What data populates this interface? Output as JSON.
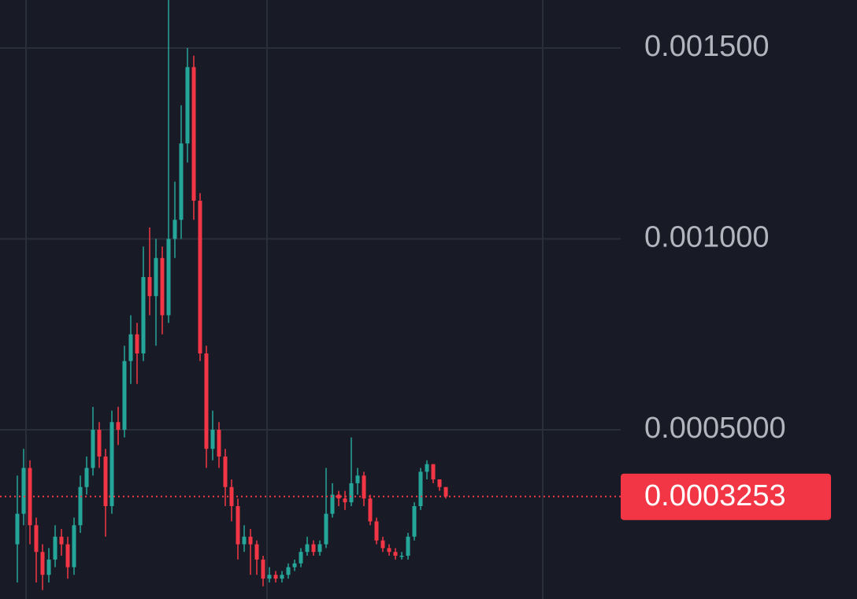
{
  "chart_data": {
    "type": "candlestick",
    "up_color": "#26a69a",
    "down_color": "#f23645",
    "ylim": [
      5.67e-05,
      0.0016258
    ],
    "yticks": [
      {
        "value": 0.0005,
        "label": "0.0005000"
      },
      {
        "value": 0.001,
        "label": "0.001000"
      },
      {
        "value": 0.0015,
        "label": "0.001500"
      }
    ],
    "grid": true,
    "last_price": 0.0003253,
    "open": [
      0.0002,
      0.00028,
      0.0004,
      0.00025,
      0.00018,
      0.00012,
      0.00016,
      0.00022,
      0.0002,
      0.00014,
      0.00025,
      0.00035,
      0.0004,
      0.0005,
      0.00043,
      0.0003,
      0.00052,
      0.0005,
      0.00068,
      0.00075,
      0.0007,
      0.0009,
      0.00085,
      0.00095,
      0.0008,
      0.001,
      0.00105,
      0.00125,
      0.00145,
      0.0011,
      0.0007,
      0.00045,
      0.0005,
      0.00043,
      0.00035,
      0.0003,
      0.0002,
      0.00022,
      0.0002,
      0.00016,
      0.00011,
      0.00012,
      0.00011,
      0.00012,
      0.00014,
      0.00015,
      0.00018,
      0.0002,
      0.00018,
      0.0002,
      0.00028,
      0.00033,
      0.00032,
      0.00031,
      0.00036,
      0.00038,
      0.00032,
      0.00026,
      0.00021,
      0.00019,
      0.00018,
      0.00017,
      0.00017,
      0.00022,
      0.0003,
      0.00039,
      0.00041,
      0.00037,
      0.00035
    ],
    "high": [
      0.00038,
      0.00045,
      0.00042,
      0.00027,
      0.0002,
      0.00019,
      0.00025,
      0.00024,
      0.00022,
      0.00027,
      0.00038,
      0.00043,
      0.00056,
      0.00052,
      0.00045,
      0.00055,
      0.00056,
      0.00072,
      0.0008,
      0.00078,
      0.00098,
      0.00103,
      0.001,
      0.00098,
      0.001626,
      0.00115,
      0.00135,
      0.0015,
      0.00148,
      0.00112,
      0.00072,
      0.00055,
      0.00052,
      0.00045,
      0.00037,
      0.00032,
      0.00025,
      0.00024,
      0.00021,
      0.00017,
      0.00014,
      0.00013,
      0.00013,
      0.00015,
      0.00016,
      0.00019,
      0.00022,
      0.00021,
      0.00021,
      0.0004,
      0.00036,
      0.00034,
      0.00034,
      0.00048,
      0.0004,
      0.00039,
      0.00033,
      0.00027,
      0.00022,
      0.0002,
      0.00019,
      0.00018,
      0.00023,
      0.00031,
      0.0004,
      0.00042,
      0.00041,
      0.00037,
      0.00035
    ],
    "low": [
      0.0001,
      0.00025,
      0.0002,
      0.0001,
      8e-05,
      0.0001,
      0.00014,
      0.00017,
      0.00011,
      0.00012,
      0.00023,
      0.00033,
      0.00038,
      0.0004,
      0.00022,
      0.00028,
      0.00046,
      0.00048,
      0.00062,
      0.00062,
      0.00068,
      0.0008,
      0.00072,
      0.00075,
      0.00078,
      0.00095,
      0.001,
      0.0012,
      0.00105,
      0.00068,
      0.0004,
      0.00042,
      0.0004,
      0.0003,
      0.00026,
      0.00016,
      0.00018,
      0.00012,
      0.00012,
      9e-05,
      0.0001,
      0.0001,
      0.0001,
      0.00011,
      0.00013,
      0.00014,
      0.00017,
      0.00017,
      0.00017,
      0.00019,
      0.00027,
      0.0003,
      0.00029,
      0.0003,
      0.00033,
      0.0003,
      0.00025,
      0.0002,
      0.00018,
      0.00017,
      0.00016,
      0.00016,
      0.00016,
      0.00021,
      0.00029,
      0.00037,
      0.00036,
      0.00034,
      0.00032
    ],
    "close": [
      0.00028,
      0.0004,
      0.00025,
      0.00018,
      0.00012,
      0.00016,
      0.00022,
      0.0002,
      0.00014,
      0.00025,
      0.00035,
      0.0004,
      0.0005,
      0.00043,
      0.0003,
      0.00052,
      0.0005,
      0.00068,
      0.00075,
      0.0007,
      0.0009,
      0.00085,
      0.00095,
      0.0008,
      0.001,
      0.00105,
      0.00125,
      0.00145,
      0.0011,
      0.0007,
      0.00045,
      0.0005,
      0.00043,
      0.00035,
      0.0003,
      0.0002,
      0.00022,
      0.0002,
      0.00016,
      0.00011,
      0.00012,
      0.00011,
      0.00012,
      0.00014,
      0.00015,
      0.00018,
      0.0002,
      0.00018,
      0.0002,
      0.00028,
      0.00033,
      0.00032,
      0.00031,
      0.00036,
      0.00038,
      0.00032,
      0.00026,
      0.00021,
      0.00019,
      0.00018,
      0.00017,
      0.00017,
      0.00022,
      0.0003,
      0.00039,
      0.00041,
      0.00037,
      0.00035,
      0.0003253
    ]
  }
}
